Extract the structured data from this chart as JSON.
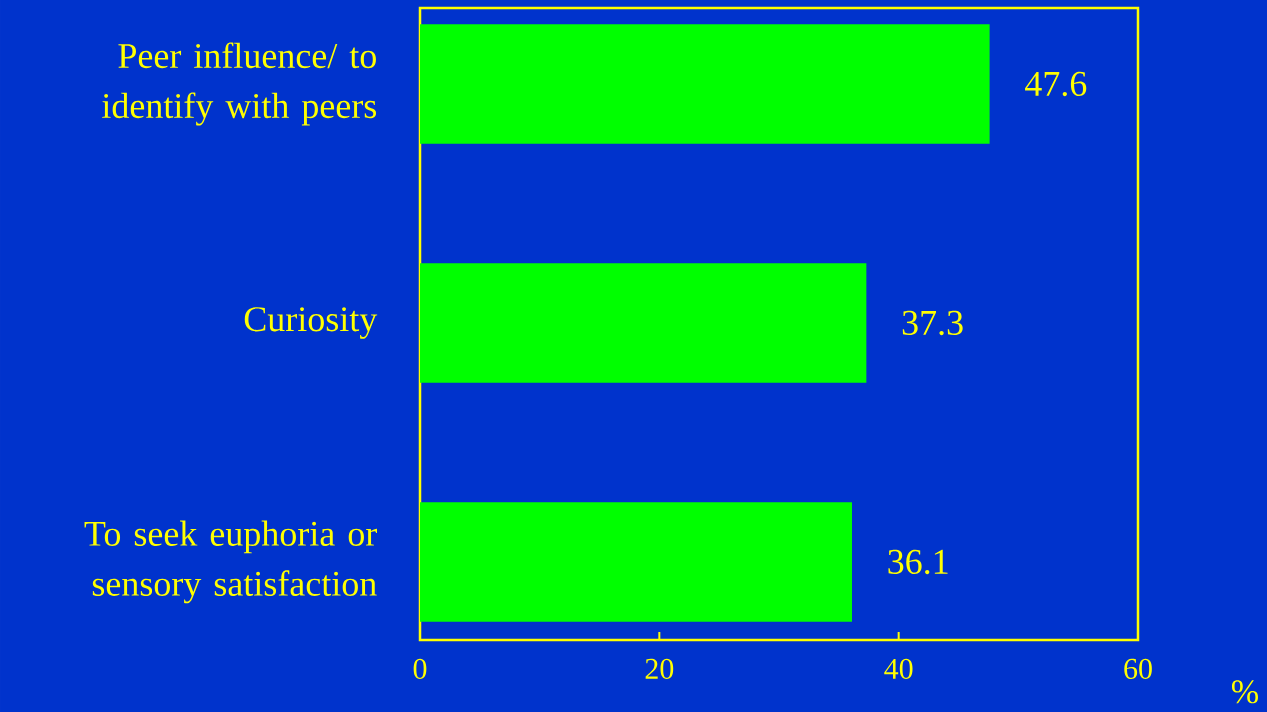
{
  "chart_data": {
    "type": "bar",
    "orientation": "horizontal",
    "categories": [
      "Peer influence/ to identify with peers",
      "Curiosity",
      "To seek euphoria or sensory satisfaction"
    ],
    "values": [
      47.6,
      37.3,
      36.1
    ],
    "color": "#00ff00",
    "xlim": [
      0,
      60
    ],
    "xticks": [
      0,
      20,
      40,
      60
    ],
    "xlabel": "%",
    "data_labels": true
  }
}
